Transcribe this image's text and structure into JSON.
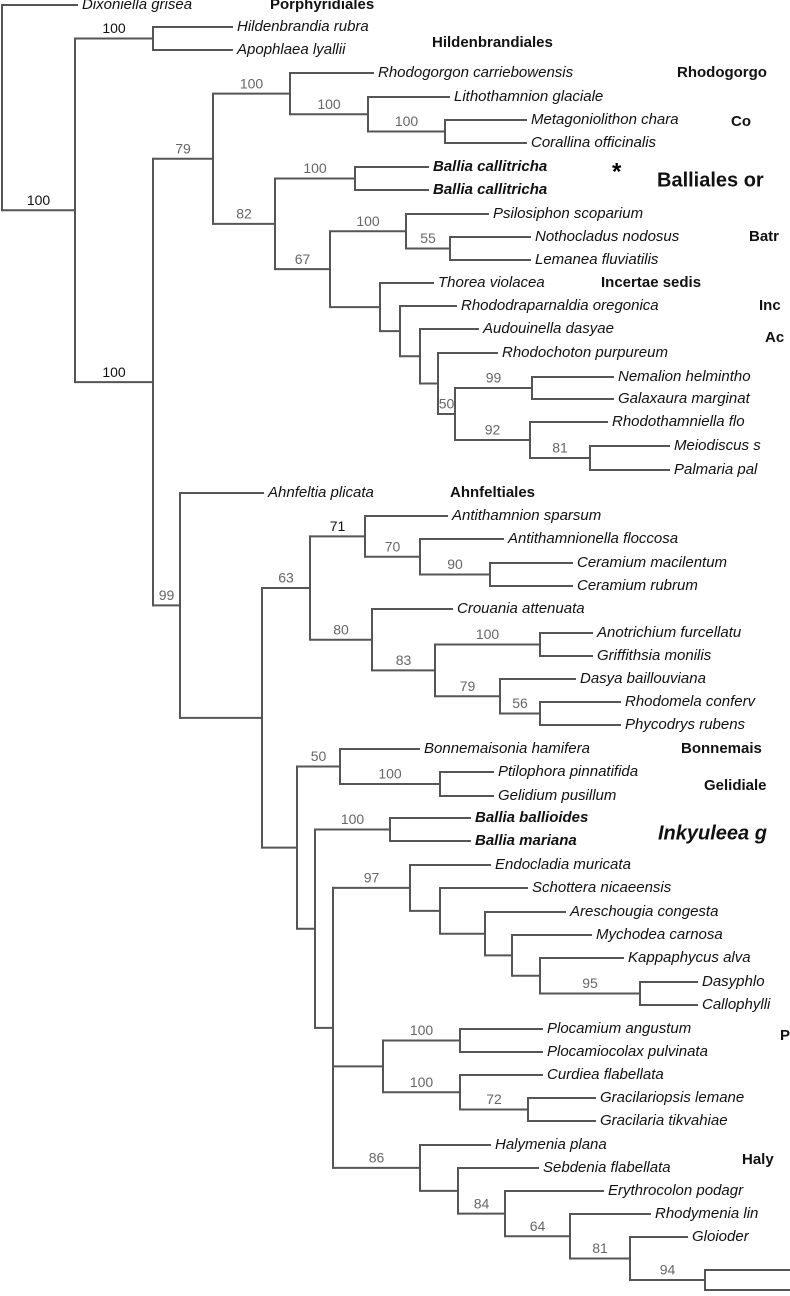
{
  "taxa": [
    "Dixoniella grisea",
    "Hildenbrandia rubra",
    "Apophlaea lyallii",
    "Rhodogorgon carriebowensis",
    "Lithothamnion glaciale",
    "Metagoniolithon chara",
    "Corallina officinalis",
    "Ballia callitricha",
    "Ballia callitricha",
    "Psilosiphon scoparium",
    "Nothocladus nodosus",
    "Lemanea fluviatilis",
    "Thorea violacea",
    "Rhododraparnaldia oregonica",
    "Audouinella dasyae",
    "Rhodochoton purpureum",
    "Nemalion helmintho",
    "Galaxaura marginat",
    "Rhodothamniella flo",
    "Meiodiscus s",
    "Palmaria pal",
    "Ahnfeltia plicata",
    "Antithamnion sparsum",
    "Antithamnionella floccosa",
    "Ceramium macilentum",
    "Ceramium rubrum",
    "Crouania attenuata",
    "Anotrichium furcellatu",
    "Griffithsia monilis",
    "Dasya baillouviana",
    "Rhodomela conferv",
    "Phycodrys rubens",
    "Bonnemaisonia hamifera",
    "Ptilophora pinnatifida",
    "Gelidium pusillum",
    "Ballia ballioides",
    "Ballia mariana",
    "Endocladia muricata",
    "Schottera nicaeensis",
    "Areschougia congesta",
    "Mychodea carnosa",
    "Kappaphycus alva",
    "Dasyphlo",
    "Callophylli",
    "Plocamium angustum",
    "Plocamiocolax pulvinata",
    "Curdiea flabellata",
    "Gracilariopsis lemane",
    "Gracilaria tikvahiae",
    "Halymenia plana",
    "Sebdenia flabellata",
    "Erythrocolon podagr",
    "Rhodymenia lin",
    "Gloioder"
  ],
  "asterisk": "*",
  "orders": [
    "Porphyridiales",
    "Hildenbrandiales",
    "Rhodogorgo",
    "Co",
    "Balliales or",
    "Batr",
    "Incertae sedis",
    "Inc",
    "Ac",
    "Ahnfeltiales",
    "Bonnemais",
    "Gelidiale",
    "Inkyuleea g",
    "P",
    "Haly"
  ],
  "bootstrap": [
    100,
    100,
    100,
    79,
    100,
    100,
    100,
    82,
    100,
    67,
    100,
    55,
    50,
    99,
    92,
    81,
    99,
    63,
    71,
    70,
    90,
    80,
    83,
    100,
    79,
    56,
    50,
    100,
    100,
    97,
    95,
    100,
    100,
    72,
    86,
    84,
    64,
    81,
    94
  ]
}
